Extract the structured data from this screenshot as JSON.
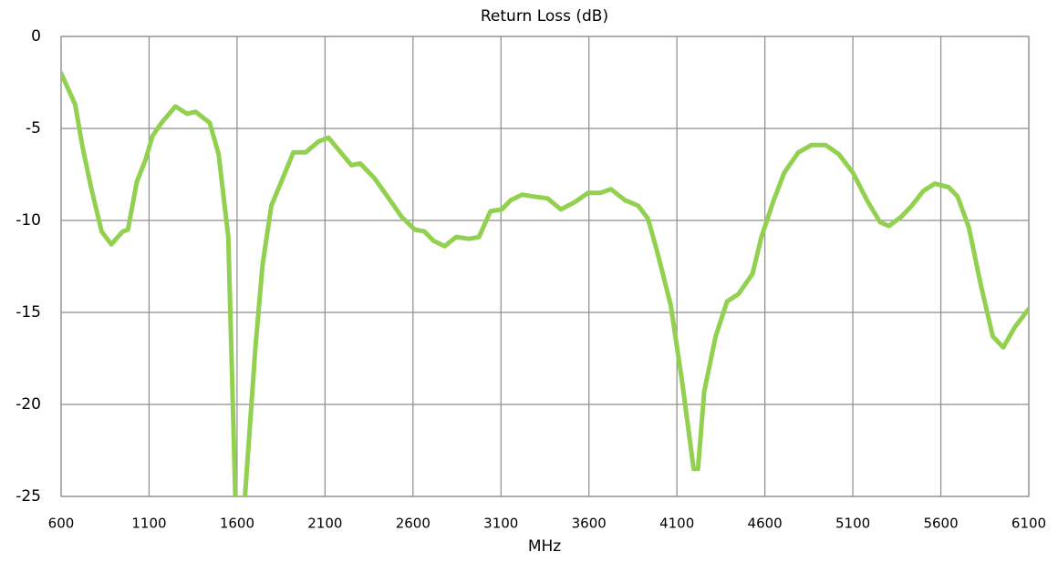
{
  "chart_data": {
    "type": "line",
    "title": "Return Loss (dB)",
    "x_label": "MHz",
    "x": [
      600,
      680,
      720,
      770,
      830,
      885,
      950,
      980,
      1030,
      1080,
      1120,
      1170,
      1250,
      1315,
      1365,
      1445,
      1495,
      1550,
      1590,
      1615,
      1645,
      1705,
      1745,
      1795,
      1860,
      1920,
      1990,
      2065,
      2120,
      2180,
      2250,
      2300,
      2380,
      2455,
      2535,
      2610,
      2665,
      2715,
      2780,
      2845,
      2920,
      2975,
      3040,
      3105,
      3155,
      3220,
      3285,
      3365,
      3440,
      3520,
      3595,
      3665,
      3725,
      3805,
      3880,
      3935,
      3985,
      4065,
      4130,
      4195,
      4220,
      4255,
      4320,
      4385,
      4450,
      4530,
      4580,
      4650,
      4710,
      4790,
      4865,
      4945,
      5020,
      5100,
      5180,
      5255,
      5305,
      5375,
      5435,
      5500,
      5565,
      5645,
      5695,
      5760,
      5825,
      5895,
      5955,
      6020,
      6100
    ],
    "series": [
      {
        "name": "Return Loss",
        "color": "#92d050",
        "values": [
          -2,
          -3.7,
          -5.9,
          -8.2,
          -10.6,
          -11.3,
          -10.6,
          -10.5,
          -7.9,
          -6.7,
          -5.4,
          -4.7,
          -3.8,
          -4.2,
          -4.1,
          -4.7,
          -6.4,
          -10.9,
          -25,
          -28,
          -25,
          -16.8,
          -12.4,
          -9.2,
          -7.7,
          -6.3,
          -6.3,
          -5.7,
          -5.5,
          -6.2,
          -7.0,
          -6.9,
          -7.7,
          -8.7,
          -9.8,
          -10.5,
          -10.6,
          -11.1,
          -11.4,
          -10.9,
          -11.0,
          -10.9,
          -9.5,
          -9.4,
          -8.9,
          -8.6,
          -8.7,
          -8.8,
          -9.4,
          -9.0,
          -8.5,
          -8.5,
          -8.3,
          -8.9,
          -9.2,
          -9.9,
          -11.6,
          -14.6,
          -18.8,
          -23.5,
          -23.5,
          -19.3,
          -16.3,
          -14.4,
          -14.0,
          -12.9,
          -10.9,
          -8.9,
          -7.4,
          -6.3,
          -5.9,
          -5.9,
          -6.4,
          -7.4,
          -8.9,
          -10.1,
          -10.3,
          -9.8,
          -9.2,
          -8.4,
          -8.0,
          -8.2,
          -8.7,
          -10.4,
          -13.4,
          -16.3,
          -16.9,
          -15.8,
          -14.8
        ]
      }
    ],
    "xlim": [
      600,
      6100
    ],
    "xticks": [
      600,
      1100,
      1600,
      2100,
      2600,
      3100,
      3600,
      4100,
      4600,
      5100,
      5600,
      6100
    ],
    "ylim": [
      -25,
      0
    ],
    "yticks": [
      0,
      -5,
      -10,
      -15,
      -20,
      -25
    ],
    "grid": true
  }
}
